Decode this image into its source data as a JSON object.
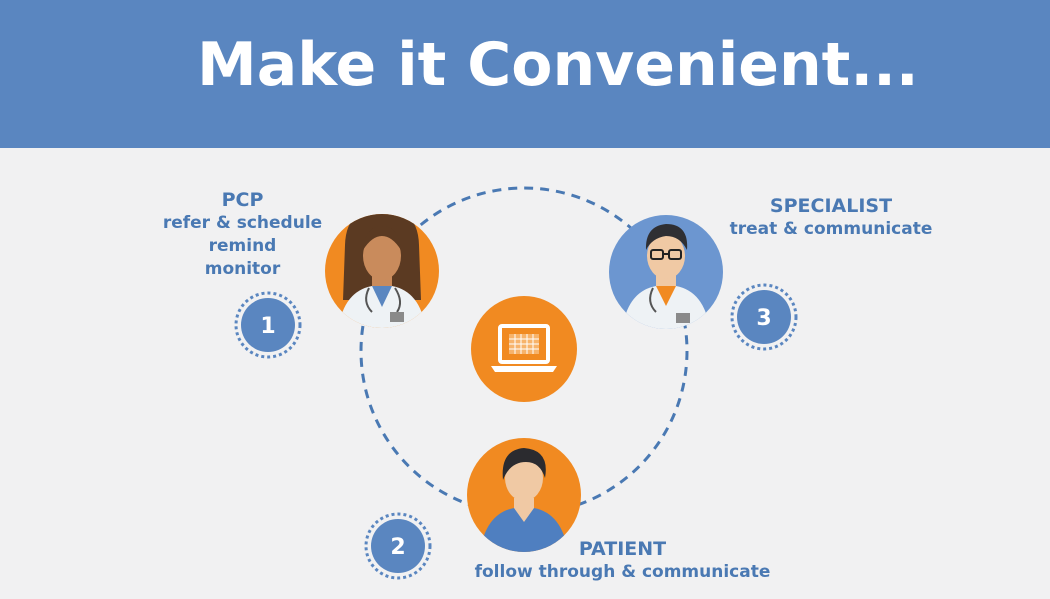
{
  "header": {
    "title": "Make it Convenient..."
  },
  "colors": {
    "banner": "#5a86c0",
    "background": "#f1f1f2",
    "accent_orange": "#f18a21",
    "accent_blue": "#5a86c0",
    "label_blue": "#4a79b3"
  },
  "nodes": {
    "pcp": {
      "title": "PCP",
      "lines": [
        "refer & schedule",
        "remind",
        "monitor"
      ],
      "icon": "female-doctor-icon",
      "step": "1"
    },
    "specialist": {
      "title": "SPECIALIST",
      "lines": [
        "treat & communicate"
      ],
      "icon": "male-doctor-icon",
      "step": "3"
    },
    "patient": {
      "title": "PATIENT",
      "lines": [
        "follow through & communicate"
      ],
      "icon": "patient-icon",
      "step": "2"
    },
    "center": {
      "icon": "laptop-calendar-icon"
    }
  }
}
